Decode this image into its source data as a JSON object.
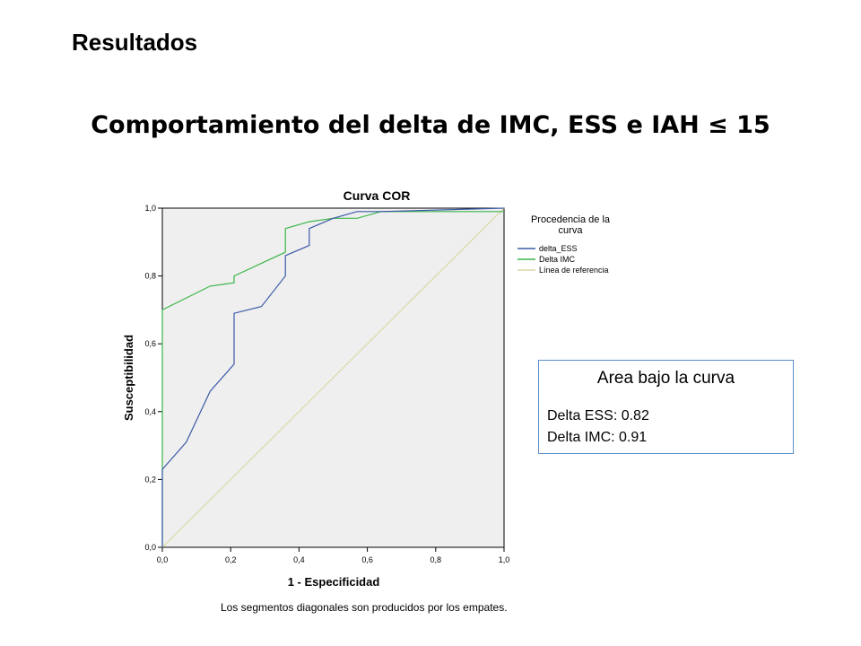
{
  "slide": {
    "heading": "Resultados",
    "title": "Comportamiento del delta de IMC, ESS e IAH ≤ 15"
  },
  "chart_data": {
    "type": "line",
    "title": "Curva COR",
    "xlabel": "1 - Especificidad",
    "ylabel": "Susceptibilidad",
    "xlim": [
      0,
      1
    ],
    "ylim": [
      0,
      1
    ],
    "x_ticks": [
      "0,0",
      "0,2",
      "0,4",
      "0,6",
      "0,8",
      "1,0"
    ],
    "y_ticks": [
      "0,0",
      "0,2",
      "0,4",
      "0,6",
      "0,8",
      "1,0"
    ],
    "grid": false,
    "legend_title": "Procedencia de la curva",
    "legend_placement": "right",
    "series": [
      {
        "name": "delta_ESS",
        "color": "#3d5ba9",
        "x": [
          0,
          0,
          0.07,
          0.14,
          0.21,
          0.21,
          0.29,
          0.36,
          0.36,
          0.43,
          0.43,
          0.5,
          0.57,
          0.64,
          1.0
        ],
        "y": [
          0,
          0.23,
          0.31,
          0.46,
          0.54,
          0.69,
          0.71,
          0.8,
          0.86,
          0.89,
          0.94,
          0.97,
          0.99,
          0.99,
          1.0
        ]
      },
      {
        "name": "Delta IMC",
        "color": "#3db54a",
        "x": [
          0,
          0,
          0.14,
          0.21,
          0.21,
          0.36,
          0.36,
          0.43,
          0.5,
          0.57,
          0.64,
          1.0
        ],
        "y": [
          0,
          0.7,
          0.77,
          0.78,
          0.8,
          0.87,
          0.94,
          0.96,
          0.97,
          0.97,
          0.99,
          0.99
        ]
      },
      {
        "name": "Línea de referencia",
        "color": "#d9d9a6",
        "x": [
          0,
          1
        ],
        "y": [
          0,
          1
        ]
      }
    ],
    "footnote": "Los segmentos diagonales son producidos por los empates."
  },
  "auc_box": {
    "title": "Area bajo la curva",
    "lines": [
      "Delta ESS: 0.82",
      "Delta IMC: 0.91"
    ]
  }
}
